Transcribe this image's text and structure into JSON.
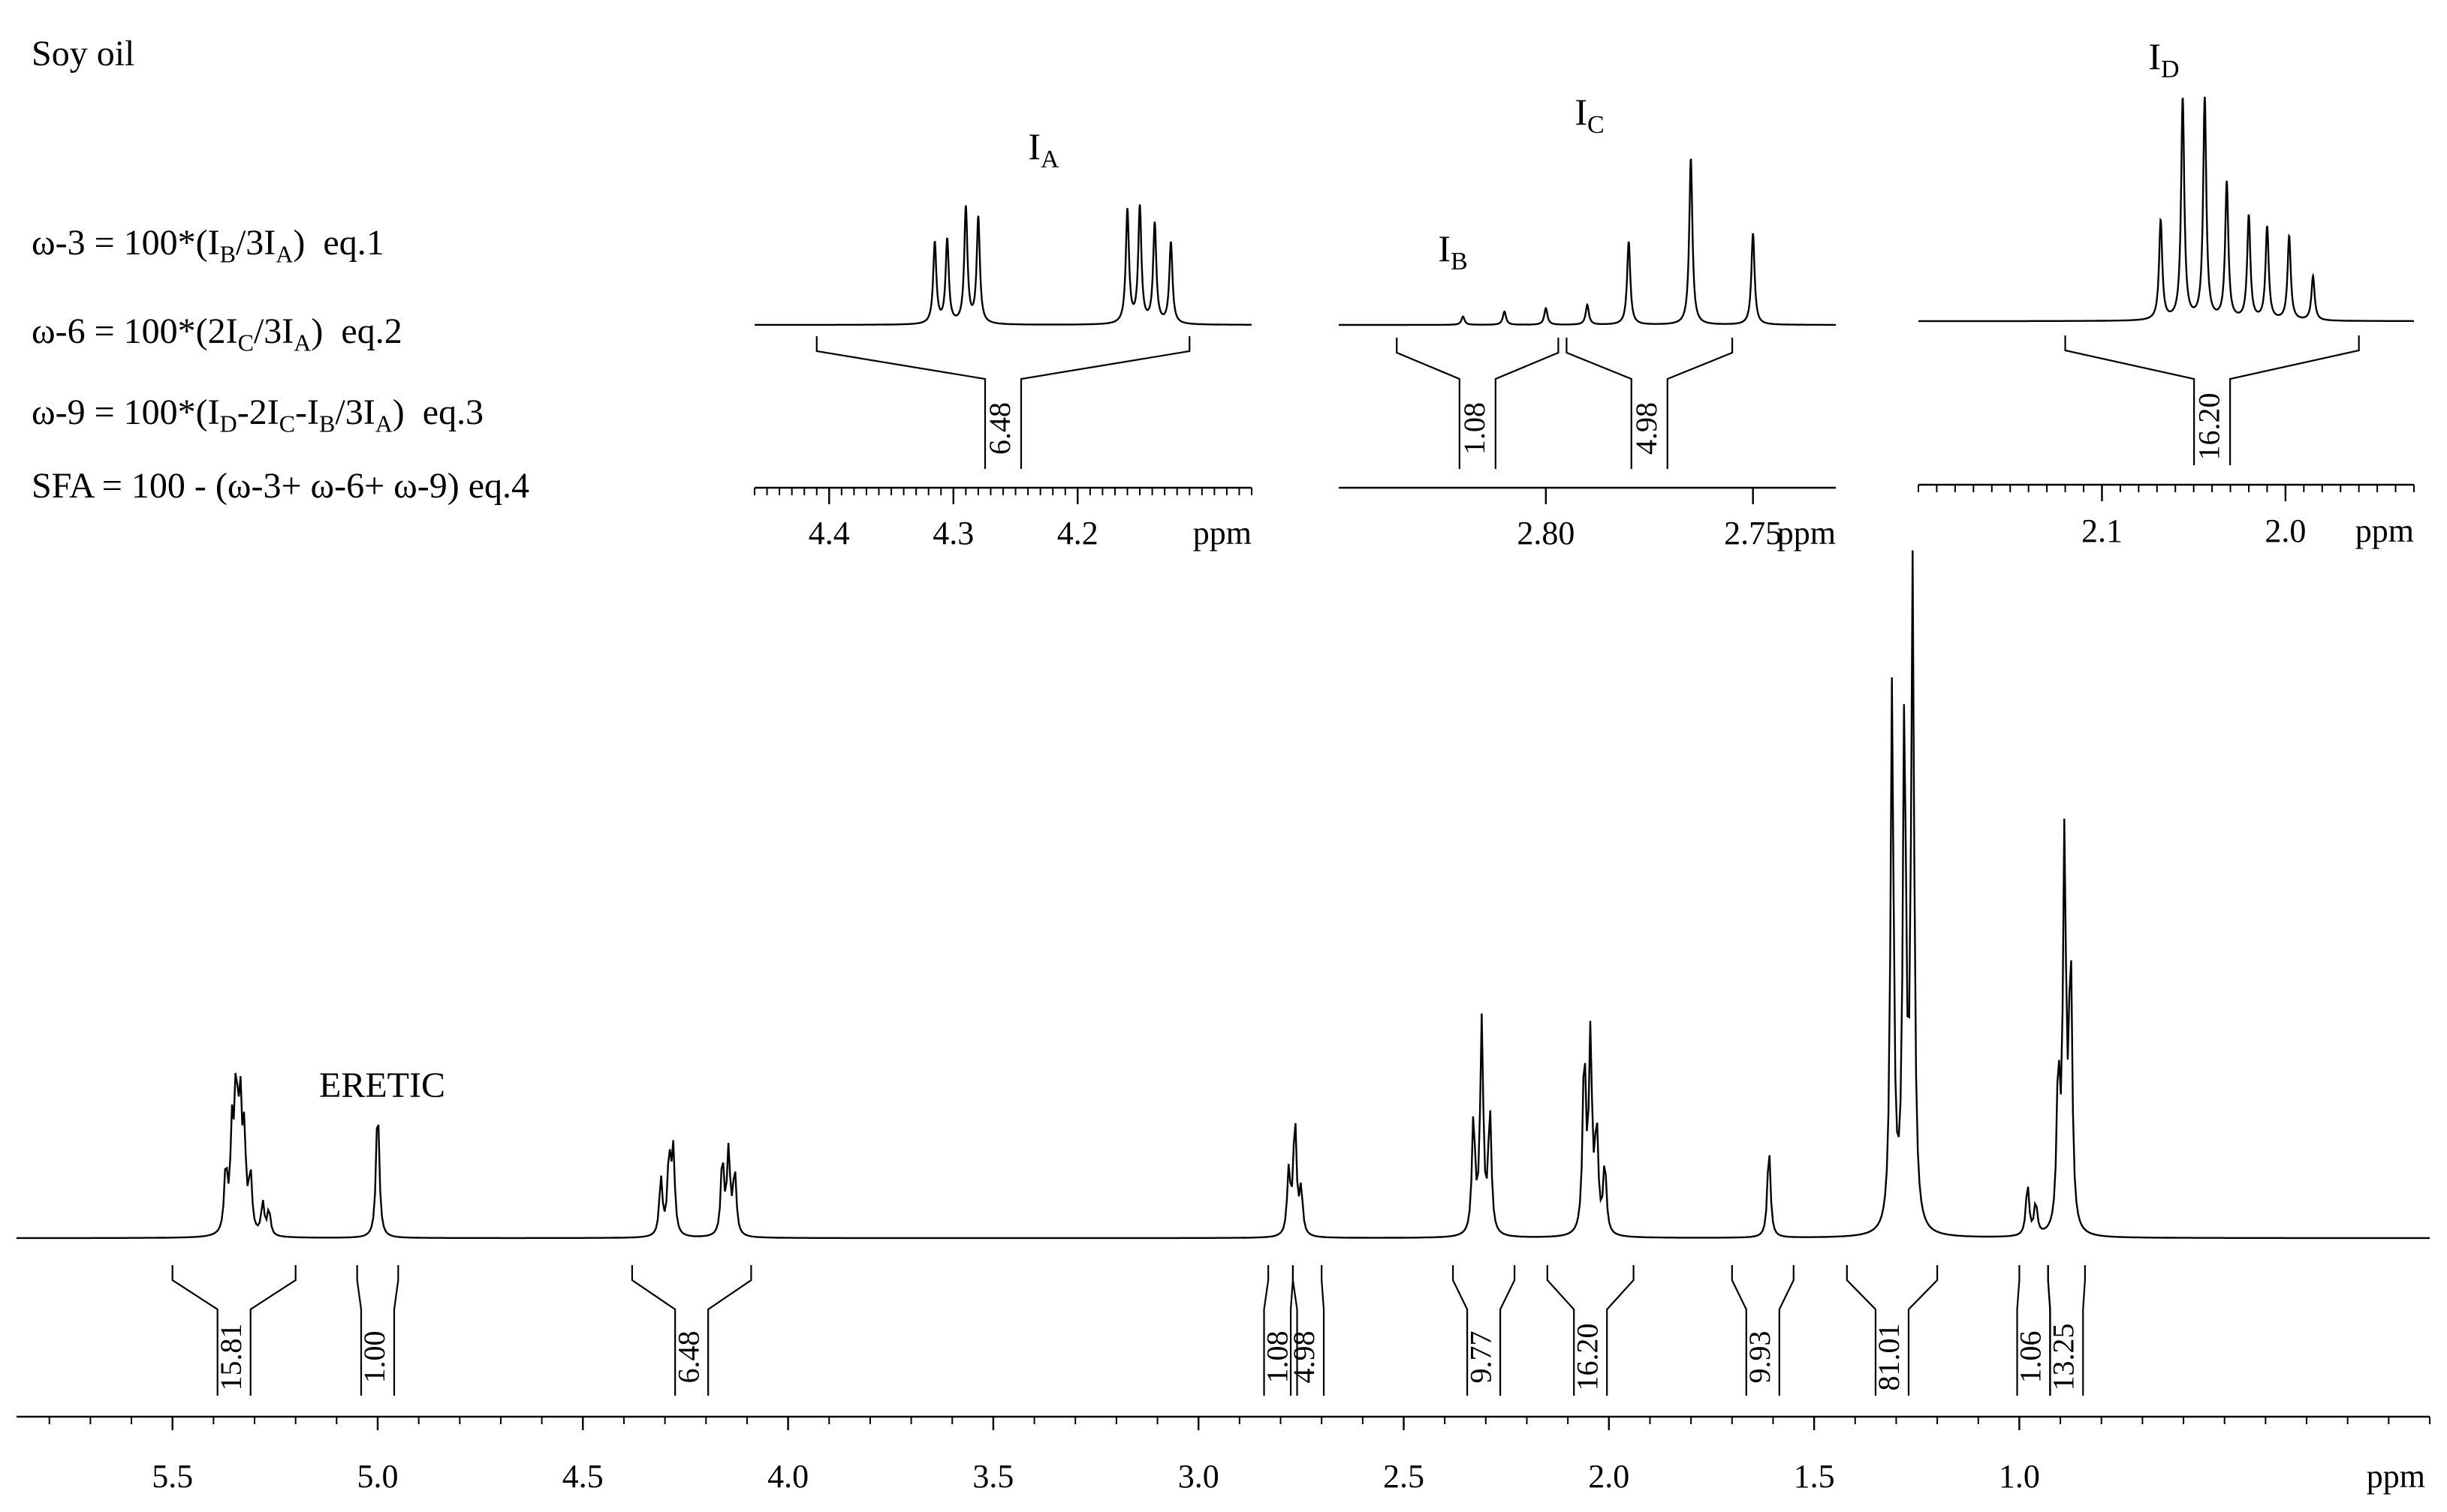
{
  "title": "Soy oil",
  "equations": [
    {
      "id": "eq1",
      "html": "ω-3 = 100*(I<sub>B</sub>/3I<sub>A</sub>)&nbsp; eq.1"
    },
    {
      "id": "eq2",
      "html": "ω-6 = 100*(2I<sub>C</sub>/3I<sub>A</sub>)&nbsp; eq.2"
    },
    {
      "id": "eq3",
      "html": "ω-9 = 100*(I<sub>D</sub>-2I<sub>C</sub>-I<sub>B</sub>/3I<sub>A</sub>)&nbsp; eq.3"
    },
    {
      "id": "eq4",
      "html": "SFA = 100 - (ω-3+ ω-6+ ω-9) eq.4"
    }
  ],
  "chart_data": [
    {
      "id": "main",
      "type": "line",
      "xlabel": "ppm",
      "xlim": [
        5.88,
        0.0
      ],
      "xticks": [
        5.5,
        5.0,
        4.5,
        4.0,
        3.5,
        3.0,
        2.5,
        2.0,
        1.5,
        1.0
      ],
      "xtick_labels": [
        "5.5",
        "5.0",
        "4.5",
        "4.0",
        "3.5",
        "3.0",
        "2.5",
        "2.0",
        "1.5",
        "1.0"
      ],
      "peak_annotation": {
        "label": "ERETIC",
        "x": 5.0
      },
      "peaks": [
        {
          "x": 5.37,
          "h": 0.1
        },
        {
          "x": 5.355,
          "h": 0.15
        },
        {
          "x": 5.345,
          "h": 0.21
        },
        {
          "x": 5.335,
          "h": 0.19
        },
        {
          "x": 5.325,
          "h": 0.14
        },
        {
          "x": 5.31,
          "h": 0.09
        },
        {
          "x": 5.28,
          "h": 0.05
        },
        {
          "x": 5.265,
          "h": 0.04
        },
        {
          "x": 5.0,
          "h": 0.21
        },
        {
          "x": 4.31,
          "h": 0.09
        },
        {
          "x": 4.29,
          "h": 0.12
        },
        {
          "x": 4.28,
          "h": 0.13
        },
        {
          "x": 4.16,
          "h": 0.12
        },
        {
          "x": 4.145,
          "h": 0.13
        },
        {
          "x": 4.13,
          "h": 0.1
        },
        {
          "x": 2.78,
          "h": 0.1
        },
        {
          "x": 2.765,
          "h": 0.18
        },
        {
          "x": 2.75,
          "h": 0.07
        },
        {
          "x": 2.33,
          "h": 0.18
        },
        {
          "x": 2.31,
          "h": 0.33
        },
        {
          "x": 2.29,
          "h": 0.19
        },
        {
          "x": 2.06,
          "h": 0.28
        },
        {
          "x": 2.045,
          "h": 0.3
        },
        {
          "x": 2.03,
          "h": 0.16
        },
        {
          "x": 2.01,
          "h": 0.11
        },
        {
          "x": 1.61,
          "h": 0.14
        },
        {
          "x": 1.31,
          "h": 0.85
        },
        {
          "x": 1.28,
          "h": 0.8
        },
        {
          "x": 1.26,
          "h": 1.02
        },
        {
          "x": 0.98,
          "h": 0.08
        },
        {
          "x": 0.96,
          "h": 0.05
        },
        {
          "x": 0.905,
          "h": 0.24
        },
        {
          "x": 0.89,
          "h": 0.6
        },
        {
          "x": 0.875,
          "h": 0.42
        }
      ],
      "integrals": [
        {
          "value": "15.81",
          "range": [
            5.5,
            5.2
          ]
        },
        {
          "value": "1.00",
          "range": [
            5.05,
            4.95
          ]
        },
        {
          "value": "6.48",
          "range": [
            4.38,
            4.09
          ]
        },
        {
          "value": "1.08",
          "range": [
            2.83,
            2.77
          ]
        },
        {
          "value": "4.98",
          "range": [
            2.77,
            2.7
          ]
        },
        {
          "value": "9.77",
          "range": [
            2.38,
            2.23
          ]
        },
        {
          "value": "16.20",
          "range": [
            2.15,
            1.94
          ]
        },
        {
          "value": "9.93",
          "range": [
            1.7,
            1.55
          ]
        },
        {
          "value": "81.01",
          "range": [
            1.42,
            1.2
          ]
        },
        {
          "value": "1.06",
          "range": [
            1.0,
            0.93
          ]
        },
        {
          "value": "13.25",
          "range": [
            0.93,
            0.84
          ]
        }
      ]
    },
    {
      "id": "inset-A",
      "type": "line",
      "peak_label": "I_A",
      "xlabel": "ppm",
      "xlim": [
        4.46,
        4.06
      ],
      "xticks": [
        4.4,
        4.3,
        4.2
      ],
      "xtick_labels": [
        "4.4",
        "4.3",
        "4.2"
      ],
      "peaks": [
        {
          "x": 4.315,
          "h": 0.65
        },
        {
          "x": 4.305,
          "h": 0.67
        },
        {
          "x": 4.29,
          "h": 0.93
        },
        {
          "x": 4.28,
          "h": 0.85
        },
        {
          "x": 4.16,
          "h": 0.91
        },
        {
          "x": 4.15,
          "h": 0.93
        },
        {
          "x": 4.138,
          "h": 0.8
        },
        {
          "x": 4.125,
          "h": 0.65
        }
      ],
      "integrals": [
        {
          "value": "6.48",
          "range": [
            4.41,
            4.11
          ]
        }
      ]
    },
    {
      "id": "inset-BC",
      "type": "line",
      "peak_labels": [
        {
          "text": "I_B",
          "x": 2.81
        },
        {
          "text": "I_C",
          "x": 2.765
        }
      ],
      "xlabel": "ppm",
      "xlim": [
        2.85,
        2.73
      ],
      "xticks": [
        2.8,
        2.75
      ],
      "xtick_labels": [
        "2.80",
        "2.75"
      ],
      "peaks": [
        {
          "x": 2.82,
          "h": 0.05
        },
        {
          "x": 2.81,
          "h": 0.08
        },
        {
          "x": 2.8,
          "h": 0.1
        },
        {
          "x": 2.79,
          "h": 0.12
        },
        {
          "x": 2.78,
          "h": 0.5
        },
        {
          "x": 2.765,
          "h": 1.0
        },
        {
          "x": 2.75,
          "h": 0.55
        }
      ],
      "integrals": [
        {
          "value": "1.08",
          "range": [
            2.836,
            2.797
          ]
        },
        {
          "value": "4.98",
          "range": [
            2.795,
            2.755
          ]
        }
      ]
    },
    {
      "id": "inset-D",
      "type": "line",
      "peak_label": "I_D",
      "xlabel": "ppm",
      "xlim": [
        2.2,
        1.93
      ],
      "xticks": [
        2.1,
        2.0
      ],
      "xtick_labels": [
        "2.1",
        "2.0"
      ],
      "peaks": [
        {
          "x": 2.068,
          "h": 0.45
        },
        {
          "x": 2.056,
          "h": 1.0
        },
        {
          "x": 2.044,
          "h": 1.0
        },
        {
          "x": 2.032,
          "h": 0.62
        },
        {
          "x": 2.02,
          "h": 0.47
        },
        {
          "x": 2.01,
          "h": 0.42
        },
        {
          "x": 1.998,
          "h": 0.38
        },
        {
          "x": 1.985,
          "h": 0.2
        }
      ],
      "integrals": [
        {
          "value": "16.20",
          "range": [
            2.12,
            1.96
          ]
        }
      ]
    }
  ]
}
